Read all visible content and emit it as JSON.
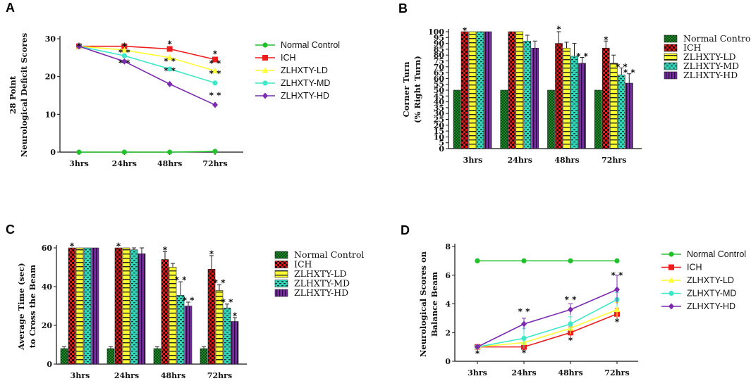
{
  "panels": [
    "A",
    "B",
    "C",
    "D"
  ],
  "groups": [
    "Normal Control",
    "ICH",
    "ZLHXTY-LD",
    "ZLHXTY-MD",
    "ZLHXTY-HD"
  ],
  "colors": {
    "normal": "#22c02a",
    "ich": "#ee1c1c",
    "ld": "#ffff33",
    "md": "#3ce8c8",
    "hd": "#7c2bb0"
  },
  "chart_data": [
    {
      "panel": "A",
      "type": "line",
      "ylabel": [
        "28 Point",
        "Neurological Deficit Scores"
      ],
      "categories": [
        "3hrs",
        "24hrs",
        "48hrs",
        "72hrs"
      ],
      "yticks": [
        0,
        10,
        20,
        30
      ],
      "ylim": [
        0,
        30
      ],
      "series": [
        {
          "name": "Normal Control",
          "values": [
            0,
            0,
            0,
            0.2
          ]
        },
        {
          "name": "ICH",
          "values": [
            28,
            28,
            27.3,
            24.5
          ]
        },
        {
          "name": "ZLHXTY-LD",
          "values": [
            28,
            27,
            25,
            21.5
          ]
        },
        {
          "name": "ZLHXTY-MD",
          "values": [
            28,
            25.5,
            22,
            18.3
          ]
        },
        {
          "name": "ZLHXTY-HD",
          "values": [
            28,
            24,
            18,
            12.5
          ]
        }
      ],
      "annotations": [
        {
          "cat": 0,
          "value": 28,
          "text": "*"
        },
        {
          "cat": 1,
          "value": 28,
          "text": "*"
        },
        {
          "cat": 1,
          "value": 26.4,
          "text": "* *"
        },
        {
          "cat": 1,
          "value": 23.6,
          "text": "* *"
        },
        {
          "cat": 2,
          "value": 28.6,
          "text": "*"
        },
        {
          "cat": 2,
          "value": 24,
          "text": "* *"
        },
        {
          "cat": 2,
          "value": 21.5,
          "text": "* *"
        },
        {
          "cat": 3,
          "value": 26,
          "text": "*"
        },
        {
          "cat": 3,
          "value": 23.5,
          "text": "* *"
        },
        {
          "cat": 3,
          "value": 20.8,
          "text": "* *"
        },
        {
          "cat": 3,
          "value": 15,
          "text": "* *"
        }
      ]
    },
    {
      "panel": "B",
      "type": "bar",
      "ylabel": [
        "Corner Turn",
        "(% Right Turn)"
      ],
      "categories": [
        "3hrs",
        "24hrs",
        "48hrs",
        "72hrs"
      ],
      "yticks": [
        0,
        5,
        10,
        15,
        20,
        25,
        30,
        35,
        40,
        45,
        50,
        55,
        60,
        65,
        70,
        75,
        80,
        85,
        90,
        95,
        100
      ],
      "ylim": [
        0,
        100
      ],
      "series": [
        {
          "name": "Normal Control",
          "values": [
            50,
            50,
            50,
            50
          ],
          "errors": [
            0,
            0,
            0,
            0
          ]
        },
        {
          "name": "ICH",
          "values": [
            100,
            100,
            90,
            86
          ],
          "errors": [
            0,
            0,
            10,
            6
          ]
        },
        {
          "name": "ZLHXTY-LD",
          "values": [
            100,
            100,
            86,
            73
          ],
          "errors": [
            0,
            0,
            5,
            7
          ]
        },
        {
          "name": "ZLHXTY-MD",
          "values": [
            100,
            92,
            79,
            63
          ],
          "errors": [
            0,
            5,
            11,
            6
          ]
        },
        {
          "name": "ZLHXTY-HD",
          "values": [
            100,
            86,
            73,
            56
          ],
          "errors": [
            0,
            6,
            5,
            8
          ]
        }
      ],
      "annotations": [
        {
          "cat": 0,
          "bar": 1,
          "value": 101,
          "text": "*"
        },
        {
          "cat": 2,
          "bar": 1,
          "value": 102,
          "text": "*"
        },
        {
          "cat": 2,
          "bar": 4,
          "value": 79,
          "text": "* *"
        },
        {
          "cat": 3,
          "bar": 1,
          "value": 93,
          "text": "*"
        },
        {
          "cat": 3,
          "bar": 3,
          "value": 70,
          "text": "* *"
        },
        {
          "cat": 3,
          "bar": 4,
          "value": 65,
          "text": "* *"
        }
      ]
    },
    {
      "panel": "C",
      "type": "bar",
      "ylabel": [
        "Average Time (sec)",
        "to Cross the Beam"
      ],
      "categories": [
        "3hrs",
        "24hrs",
        "48hrs",
        "72hrs"
      ],
      "yticks": [
        0,
        20,
        40,
        60
      ],
      "ylim": [
        0,
        60
      ],
      "series": [
        {
          "name": "Normal Control",
          "values": [
            8,
            8,
            8,
            8
          ],
          "errors": [
            1,
            1,
            1,
            1
          ]
        },
        {
          "name": "ICH",
          "values": [
            60,
            60,
            54,
            49
          ],
          "errors": [
            0,
            0,
            4,
            7
          ]
        },
        {
          "name": "ZLHXTY-LD",
          "values": [
            60,
            60,
            50,
            38
          ],
          "errors": [
            0,
            0,
            2,
            3
          ]
        },
        {
          "name": "ZLHXTY-MD",
          "values": [
            60,
            59,
            35.5,
            29
          ],
          "errors": [
            0,
            1,
            7,
            2
          ]
        },
        {
          "name": "ZLHXTY-HD",
          "values": [
            60,
            57,
            30,
            22
          ],
          "errors": [
            0,
            3,
            2,
            2
          ]
        }
      ],
      "annotations": [
        {
          "cat": 0,
          "bar": 1,
          "value": 61,
          "text": "*"
        },
        {
          "cat": 1,
          "bar": 1,
          "value": 61,
          "text": "*"
        },
        {
          "cat": 2,
          "bar": 1,
          "value": 59,
          "text": "*"
        },
        {
          "cat": 2,
          "bar": 3,
          "value": 43.5,
          "text": "* *"
        },
        {
          "cat": 2,
          "bar": 4,
          "value": 33,
          "text": "* *"
        },
        {
          "cat": 3,
          "bar": 1,
          "value": 57,
          "text": "*"
        },
        {
          "cat": 3,
          "bar": 2,
          "value": 42,
          "text": "* *"
        },
        {
          "cat": 3,
          "bar": 3,
          "value": 32,
          "text": "* *"
        },
        {
          "cat": 3,
          "bar": 4,
          "value": 25,
          "text": "*"
        }
      ]
    },
    {
      "panel": "D",
      "type": "line",
      "ylabel": [
        "Neurological Scores on",
        "Balance Beam"
      ],
      "categories": [
        "3hrs",
        "24hrs",
        "48hrs",
        "72hrs"
      ],
      "yticks": [
        0,
        2,
        4,
        6,
        8
      ],
      "ylim": [
        0,
        8
      ],
      "series": [
        {
          "name": "Normal Control",
          "values": [
            7,
            7,
            7,
            7
          ],
          "errors": [
            0,
            0,
            0,
            0
          ]
        },
        {
          "name": "ICH",
          "values": [
            1,
            1,
            2,
            3.3
          ],
          "errors": [
            0,
            0.3,
            0.4,
            0.4
          ]
        },
        {
          "name": "ZLHXTY-LD",
          "values": [
            1,
            1.3,
            2.3,
            3.6
          ],
          "errors": [
            0,
            0.3,
            0.4,
            0.5
          ]
        },
        {
          "name": "ZLHXTY-MD",
          "values": [
            1,
            1.6,
            2.6,
            4.3
          ],
          "errors": [
            0,
            0.7,
            0.5,
            0.5
          ]
        },
        {
          "name": "ZLHXTY-HD",
          "values": [
            1,
            2.6,
            3.6,
            5
          ],
          "errors": [
            0,
            0.4,
            0.4,
            1
          ]
        }
      ],
      "annotations": [
        {
          "cat": 0,
          "value": 0.55,
          "text": "*"
        },
        {
          "cat": 1,
          "value": 3.45,
          "text": "* *"
        },
        {
          "cat": 1,
          "value": 0.6,
          "text": "*"
        },
        {
          "cat": 2,
          "value": 4.3,
          "text": "* *"
        },
        {
          "cat": 2,
          "value": 1.45,
          "text": "*"
        },
        {
          "cat": 3,
          "value": 6.0,
          "text": "* *"
        },
        {
          "cat": 3,
          "value": 2.75,
          "text": "*"
        }
      ]
    }
  ]
}
